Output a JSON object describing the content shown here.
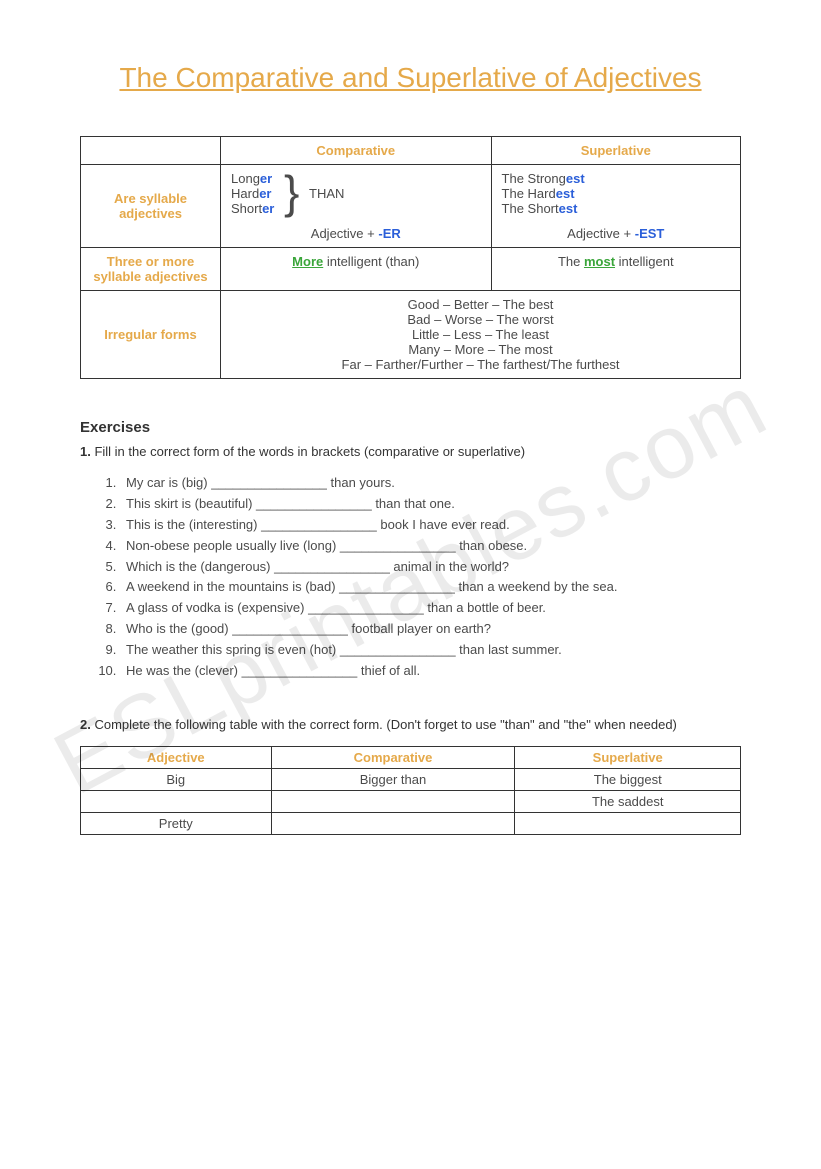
{
  "title": "The Comparative and Superlative of Adjectives",
  "watermark": "ESLprintables.com",
  "table": {
    "headers": {
      "comp": "Comparative",
      "sup": "Superlative"
    },
    "row1": {
      "label": "Are syllable adjectives",
      "comp_words": [
        "Long",
        "Hard",
        "Short"
      ],
      "comp_suffix": "er",
      "comp_than": "THAN",
      "comp_formula_prefix": "Adjective + ",
      "comp_formula_suffix": "-ER",
      "sup_words": [
        "The Strong",
        "The Hard",
        "The Short"
      ],
      "sup_suffix": "est",
      "sup_formula_prefix": "Adjective + ",
      "sup_formula_suffix": "-EST"
    },
    "row2": {
      "label": "Three or more syllable adjectives",
      "comp_more": "More",
      "comp_rest": " intelligent (than)",
      "sup_pre": "The ",
      "sup_most": "most",
      "sup_rest": " intelligent"
    },
    "row3": {
      "label": "Irregular forms",
      "lines": [
        "Good – Better – The best",
        "Bad – Worse – The worst",
        "Little – Less – The least",
        "Many – More – The most",
        "Far – Farther/Further – The farthest/The furthest"
      ]
    }
  },
  "exercises": {
    "heading": "Exercises",
    "ex1_num": "1.",
    "ex1_intro": " Fill in the correct form of the words in brackets (comparative or superlative)",
    "ex1_items": [
      "My car is (big) ________________ than yours.",
      "This skirt is (beautiful) ________________ than that one.",
      "This is the (interesting) ________________ book I have ever read.",
      "Non-obese people usually live (long) ________________ than obese.",
      "Which is the (dangerous) ________________ animal in the world?",
      "A weekend in the mountains is (bad) ________________ than a weekend by the sea.",
      "A glass of vodka is (expensive) ________________ than a bottle of beer.",
      "Who is the (good) ________________ football player on earth?",
      "The weather this spring is even (hot) ________________ than last summer.",
      "He was the (clever) ________________ thief of all."
    ],
    "ex2_num": "2.",
    "ex2_intro": " Complete the following table with the correct form. (Don't forget to use \"than\" and \"the\" when needed)",
    "ex2_headers": [
      "Adjective",
      "Comparative",
      "Superlative"
    ],
    "ex2_rows": [
      [
        "Big",
        "Bigger than",
        "The biggest"
      ],
      [
        "",
        "",
        "The saddest"
      ],
      [
        "Pretty",
        "",
        ""
      ]
    ]
  },
  "colors": {
    "accent_orange": "#e5a94a",
    "accent_blue": "#2b5fd9",
    "accent_green": "#3aa53a",
    "text": "#4b4b4b",
    "border": "#333333",
    "background": "#ffffff"
  }
}
